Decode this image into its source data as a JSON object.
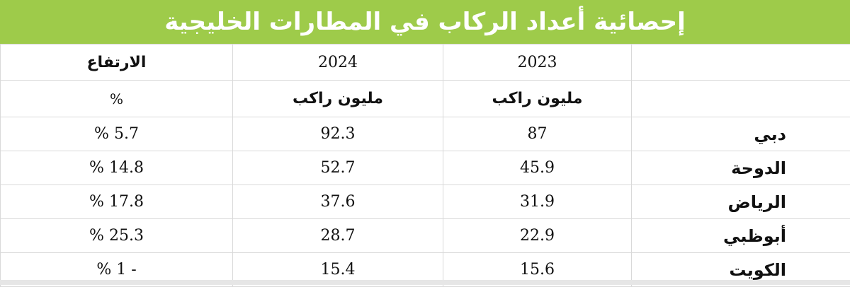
{
  "title": "إحصائية أعداد الركاب في المطارات الخليجية",
  "headers": {
    "change": "الارتفاع",
    "year_2024": "2024",
    "year_2023": "2023",
    "percent_symbol": "%",
    "unit_2024": "مليون راكب",
    "unit_2023": "مليون راكب"
  },
  "rows": [
    {
      "city": "دبي",
      "y2023": "87",
      "y2024": "92.3",
      "change": "5.7 %"
    },
    {
      "city": "الدوحة",
      "y2023": "45.9",
      "y2024": "52.7",
      "change": "14.8 %"
    },
    {
      "city": "الرياض",
      "y2023": "31.9",
      "y2024": "37.6",
      "change": "17.8 %"
    },
    {
      "city": "أبوظبي",
      "y2023": "22.9",
      "y2024": "28.7",
      "change": "25.3 %"
    },
    {
      "city": "الكويت",
      "y2023": "15.6",
      "y2024": "15.4",
      "change": "- 1 %"
    }
  ],
  "colors": {
    "title_bar": "#9ecb4a",
    "title_text": "#ffffff",
    "grid": "#d9d9d9"
  }
}
